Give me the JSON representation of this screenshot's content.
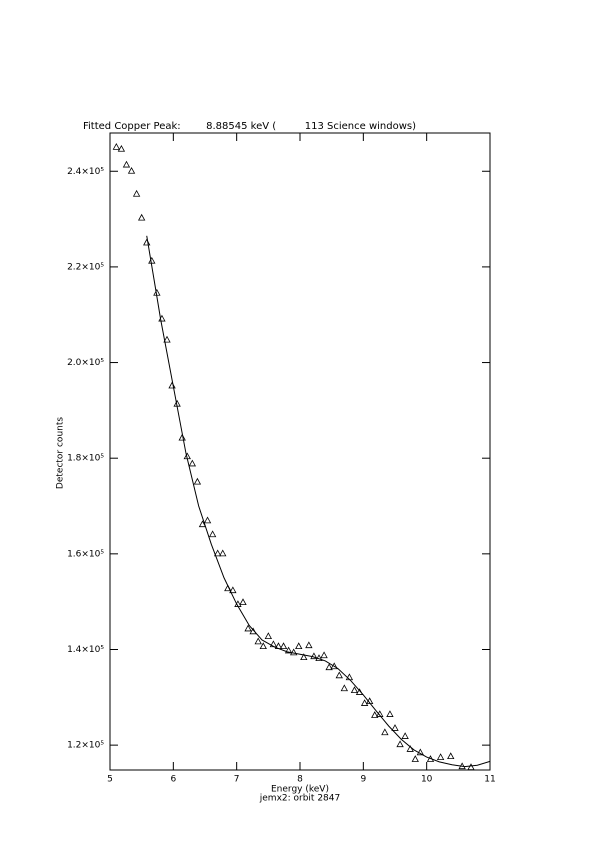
{
  "chart_data": {
    "type": "scatter",
    "title": "Fitted Copper Peak:        8.88545 keV (         113 Science windows)",
    "xlabel": "Energy (keV)",
    "subtitle": "jemx2: orbit 2847",
    "ylabel": "Detector counts",
    "xlim": [
      5,
      11
    ],
    "xticks": [
      5,
      6,
      7,
      8,
      9,
      10,
      11
    ],
    "ylim": [
      114800,
      248000
    ],
    "yticks": [
      {
        "value": 120000,
        "label": "1.2×10⁵"
      },
      {
        "value": 140000,
        "label": "1.4×10⁵"
      },
      {
        "value": 160000,
        "label": "1.6×10⁵"
      },
      {
        "value": 180000,
        "label": "1.8×10⁵"
      },
      {
        "value": 200000,
        "label": "2.0×10⁵"
      },
      {
        "value": 220000,
        "label": "2.2×10⁵"
      },
      {
        "value": 240000,
        "label": "2.4×10⁵"
      }
    ],
    "series": [
      {
        "mode": "markers",
        "marker": "triangle",
        "color": "#000000",
        "x": [
          5.1,
          5.18,
          5.26,
          5.34,
          5.42,
          5.5,
          5.58,
          5.66,
          5.74,
          5.82,
          5.9,
          5.98,
          6.06,
          6.14,
          6.22,
          6.3,
          6.38,
          6.46,
          6.54,
          6.62,
          6.7,
          6.78,
          6.86,
          6.94,
          7.02,
          7.1,
          7.18,
          7.26,
          7.34,
          7.42,
          7.5,
          7.58,
          7.66,
          7.74,
          7.82,
          7.9,
          7.98,
          8.06,
          8.14,
          8.22,
          8.3,
          8.38,
          8.46,
          8.54,
          8.62,
          8.7,
          8.78,
          8.86,
          8.94,
          9.02,
          9.1,
          9.18,
          9.26,
          9.34,
          9.42,
          9.5,
          9.58,
          9.66,
          9.74,
          9.82,
          9.9,
          10.06,
          10.22,
          10.38,
          10.56,
          10.7
        ],
        "values": [
          245100,
          244700,
          241400,
          240100,
          235300,
          230300,
          225100,
          221300,
          214600,
          209200,
          204800,
          195200,
          191400,
          184300,
          180400,
          178900,
          175100,
          166200,
          167000,
          164100,
          160100,
          160100,
          152800,
          152400,
          149500,
          149900,
          144400,
          143800,
          141700,
          140700,
          142800,
          141100,
          140700,
          140700,
          139800,
          139400,
          140700,
          138400,
          140900,
          138600,
          138200,
          138800,
          136300,
          136500,
          134600,
          131900,
          134200,
          131500,
          131100,
          128800,
          129200,
          126300,
          126500,
          122700,
          126500,
          123600,
          120200,
          121900,
          119200,
          117100,
          118500,
          117100,
          117500,
          117700,
          115600,
          115400
        ]
      },
      {
        "mode": "line",
        "color": "#000000",
        "x": [
          5.58,
          5.7,
          5.8,
          6.0,
          6.2,
          6.4,
          6.6,
          6.8,
          7.0,
          7.2,
          7.4,
          7.6,
          7.8,
          8.0,
          8.2,
          8.4,
          8.6,
          8.8,
          9.0,
          9.2,
          9.4,
          9.6,
          9.8,
          10.0,
          10.2,
          10.4,
          10.6,
          10.8,
          11.0
        ],
        "values": [
          226500,
          217000,
          209000,
          195000,
          181000,
          170000,
          162000,
          155000,
          149500,
          145000,
          142000,
          140500,
          139500,
          139000,
          138500,
          137600,
          136000,
          133500,
          130500,
          127200,
          124000,
          121200,
          119000,
          117500,
          116500,
          115900,
          115500,
          115800,
          116600
        ]
      }
    ]
  }
}
